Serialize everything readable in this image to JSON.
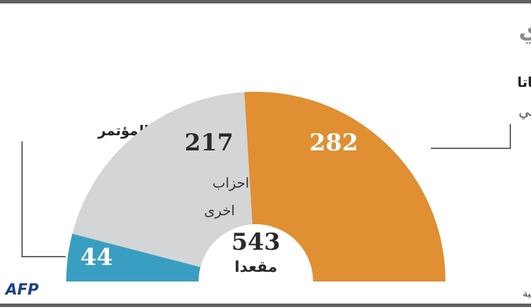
{
  "title": "البرلمان الهندي",
  "chart_data": {
    "type": "half-donut",
    "categories": [
      [
        "حزب المؤتمر"
      ],
      [
        "احزاب",
        "اخرى"
      ],
      [
        "حزب بهاراتيا جاناتا",
        "القومي الهندوسي"
      ]
    ],
    "values": [
      44,
      217,
      282
    ],
    "colors": [
      "#3a9ec2",
      "#d4d5d7",
      "#e08f32"
    ],
    "total": 543,
    "total_label": "مقعدا"
  },
  "source": "المصدر: اللجنة الانتخابية",
  "logo": "AFP"
}
